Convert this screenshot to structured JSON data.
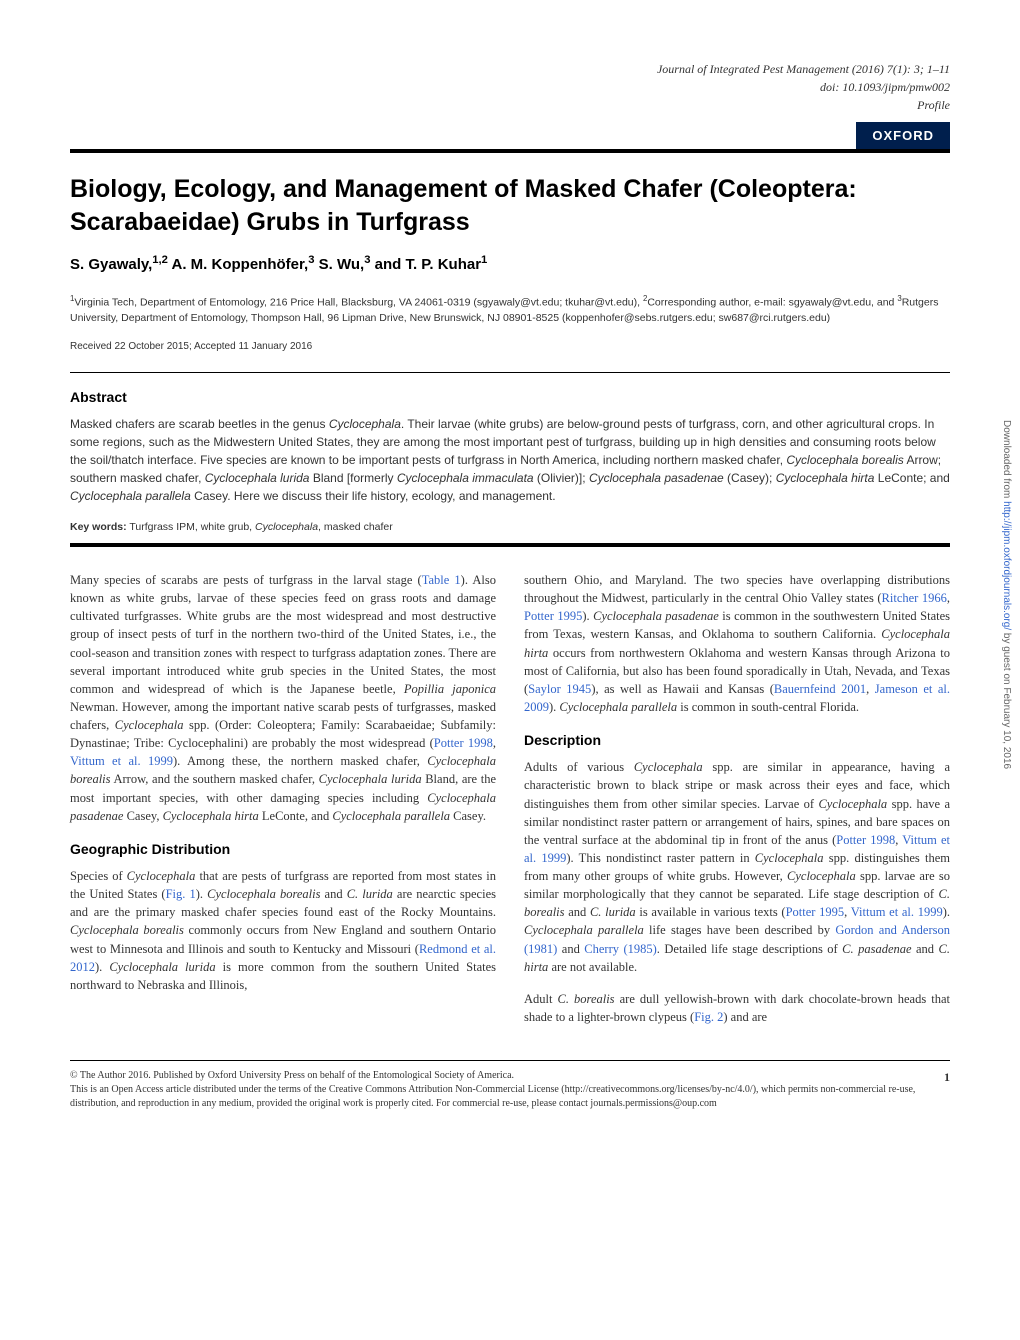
{
  "journal": {
    "name": "Journal of Integrated Pest Management (2016) 7(1): 3; 1–11",
    "doi": "doi: 10.1093/jipm/pmw002",
    "type": "Profile"
  },
  "publisher_badge": "OXFORD",
  "title": "Biology, Ecology, and Management of Masked Chafer (Coleoptera: Scarabaeidae) Grubs in Turfgrass",
  "authors": "S. Gyawaly,<sup>1,2</sup> A. M. Koppenhöfer,<sup>3</sup> S. Wu,<sup>3</sup> and T. P. Kuhar<sup>1</sup>",
  "affiliations": "<sup>1</sup>Virginia Tech, Department of Entomology, 216 Price Hall, Blacksburg, VA 24061-0319 (sgyawaly@vt.edu; tkuhar@vt.edu), <sup>2</sup>Corresponding author, e-mail: sgyawaly@vt.edu, and <sup>3</sup>Rutgers University, Department of Entomology, Thompson Hall, 96 Lipman Drive, New Brunswick, NJ 08901-8525 (koppenhofer@sebs.rutgers.edu; sw687@rci.rutgers.edu)",
  "received": "Received 22 October 2015; Accepted 11 January 2016",
  "abstract_heading": "Abstract",
  "abstract": "Masked chafers are scarab beetles in the genus <span class=\"italic\">Cyclocephala</span>. Their larvae (white grubs) are below-ground pests of turfgrass, corn, and other agricultural crops. In some regions, such as the Midwestern United States, they are among the most important pest of turfgrass, building up in high densities and consuming roots below the soil/thatch interface. Five species are known to be important pests of turfgrass in North America, including northern masked chafer, <span class=\"italic\">Cyclocephala borealis</span> Arrow; southern masked chafer, <span class=\"italic\">Cyclocephala lurida</span> Bland [formerly <span class=\"italic\">Cyclocephala immaculata</span> (Olivier)]; <span class=\"italic\">Cyclocephala pasadenae</span> (Casey); <span class=\"italic\">Cyclocephala hirta</span> LeConte; and <span class=\"italic\">Cyclocephala parallela</span> Casey. Here we discuss their life history, ecology, and management.",
  "keywords_label": "Key words:",
  "keywords_text": "Turfgrass IPM, white grub, <span class=\"italic\">Cyclocephala</span>, masked chafer",
  "left_col": {
    "p1": "Many species of scarabs are pests of turfgrass in the larval stage (<span class=\"cite\">Table 1</span>). Also known as white grubs, larvae of these species feed on grass roots and damage cultivated turfgrasses. White grubs are the most widespread and most destructive group of insect pests of turf in the northern two-third of the United States, i.e., the cool-season and transition zones with respect to turfgrass adaptation zones. There are several important introduced white grub species in the United States, the most common and widespread of which is the Japanese beetle, <span class=\"italic\">Popillia japonica</span> Newman. However, among the important native scarab pests of turfgrasses, masked chafers, <span class=\"italic\">Cyclocephala</span> spp. (Order: Coleoptera; Family: Scarabaeidae; Subfamily: Dynastinae; Tribe: Cyclocephalini) are probably the most widespread (<span class=\"cite\">Potter 1998</span>, <span class=\"cite\">Vittum et al. 1999</span>). Among these, the northern masked chafer, <span class=\"italic\">Cyclocephala borealis</span> Arrow, and the southern masked chafer, <span class=\"italic\">Cyclocephala lurida</span> Bland, are the most important species, with other damaging species including <span class=\"italic\">Cyclocephala pasadenae</span> Casey, <span class=\"italic\">Cyclocephala hirta</span> LeConte, and <span class=\"italic\">Cyclocephala parallela</span> Casey.",
    "h1": "Geographic Distribution",
    "p2": "Species of <span class=\"italic\">Cyclocephala</span> that are pests of turfgrass are reported from most states in the United States (<span class=\"cite\">Fig. 1</span>). <span class=\"italic\">Cyclocephala borealis</span> and <span class=\"italic\">C. lurida</span> are nearctic species and are the primary masked chafer species found east of the Rocky Mountains. <span class=\"italic\">Cyclocephala borealis</span> commonly occurs from New England and southern Ontario west to Minnesota and Illinois and south to Kentucky and Missouri (<span class=\"cite\">Redmond et al. 2012</span>). <span class=\"italic\">Cyclocephala lurida</span> is more common from the southern United States northward to Nebraska and Illinois,"
  },
  "right_col": {
    "p1": "southern Ohio, and Maryland. The two species have overlapping distributions throughout the Midwest, particularly in the central Ohio Valley states (<span class=\"cite\">Ritcher 1966</span>, <span class=\"cite\">Potter 1995</span>). <span class=\"italic\">Cyclocephala pasadenae</span> is common in the southwestern United States from Texas, western Kansas, and Oklahoma to southern California. <span class=\"italic\">Cyclocephala hirta</span> occurs from northwestern Oklahoma and western Kansas through Arizona to most of California, but also has been found sporadically in Utah, Nevada, and Texas (<span class=\"cite\">Saylor 1945</span>), as well as Hawaii and Kansas (<span class=\"cite\">Bauernfeind 2001</span>, <span class=\"cite\">Jameson et al. 2009</span>). <span class=\"italic\">Cyclocephala parallela</span> is common in south-central Florida.",
    "h1": "Description",
    "p2": "Adults of various <span class=\"italic\">Cyclocephala</span> spp. are similar in appearance, having a characteristic brown to black stripe or mask across their eyes and face, which distinguishes them from other similar species. Larvae of <span class=\"italic\">Cyclocephala</span> spp. have a similar nondistinct raster pattern or arrangement of hairs, spines, and bare spaces on the ventral surface at the abdominal tip in front of the anus (<span class=\"cite\">Potter 1998</span>, <span class=\"cite\">Vittum et al. 1999</span>). This nondistinct raster pattern in <span class=\"italic\">Cyclocephala</span> spp. distinguishes them from many other groups of white grubs. However, <span class=\"italic\">Cyclocephala</span> spp. larvae are so similar morphologically that they cannot be separated. Life stage description of <span class=\"italic\">C. borealis</span> and <span class=\"italic\">C. lurida</span> is available in various texts (<span class=\"cite\">Potter 1995</span>, <span class=\"cite\">Vittum et al. 1999</span>). <span class=\"italic\">Cyclocephala parallela</span> life stages have been described by <span class=\"cite\">Gordon and Anderson (1981)</span> and <span class=\"cite\">Cherry (1985)</span>. Detailed life stage descriptions of <span class=\"italic\">C. pasadenae</span> and <span class=\"italic\">C. hirta</span> are not available.",
    "p3": "Adult <span class=\"italic\">C. borealis</span> are dull yellowish-brown with dark chocolate-brown heads that shade to a lighter-brown clypeus (<span class=\"cite\">Fig. 2</span>) and are"
  },
  "footer": {
    "copyright": "© The Author 2016. Published by Oxford University Press on behalf of the Entomological Society of America.",
    "license": "This is an Open Access article distributed under the terms of the Creative Commons Attribution Non-Commercial License (http://creativecommons.org/licenses/by-nc/4.0/), which permits non-commercial re-use, distribution, and reproduction in any medium, provided the original work is properly cited. For commercial re-use, please contact journals.permissions@oup.com",
    "page_number": "1"
  },
  "sidebar": "Downloaded from <span class=\"sidebar-link\">http://jipm.oxfordjournals.org/</span> by guest on February 10, 2016",
  "colors": {
    "oxford_bg": "#001f4d",
    "text": "#333333",
    "citation": "#3366cc",
    "rule": "#000000",
    "background": "#ffffff"
  },
  "fonts": {
    "body": "Times New Roman",
    "headings": "Arial"
  }
}
